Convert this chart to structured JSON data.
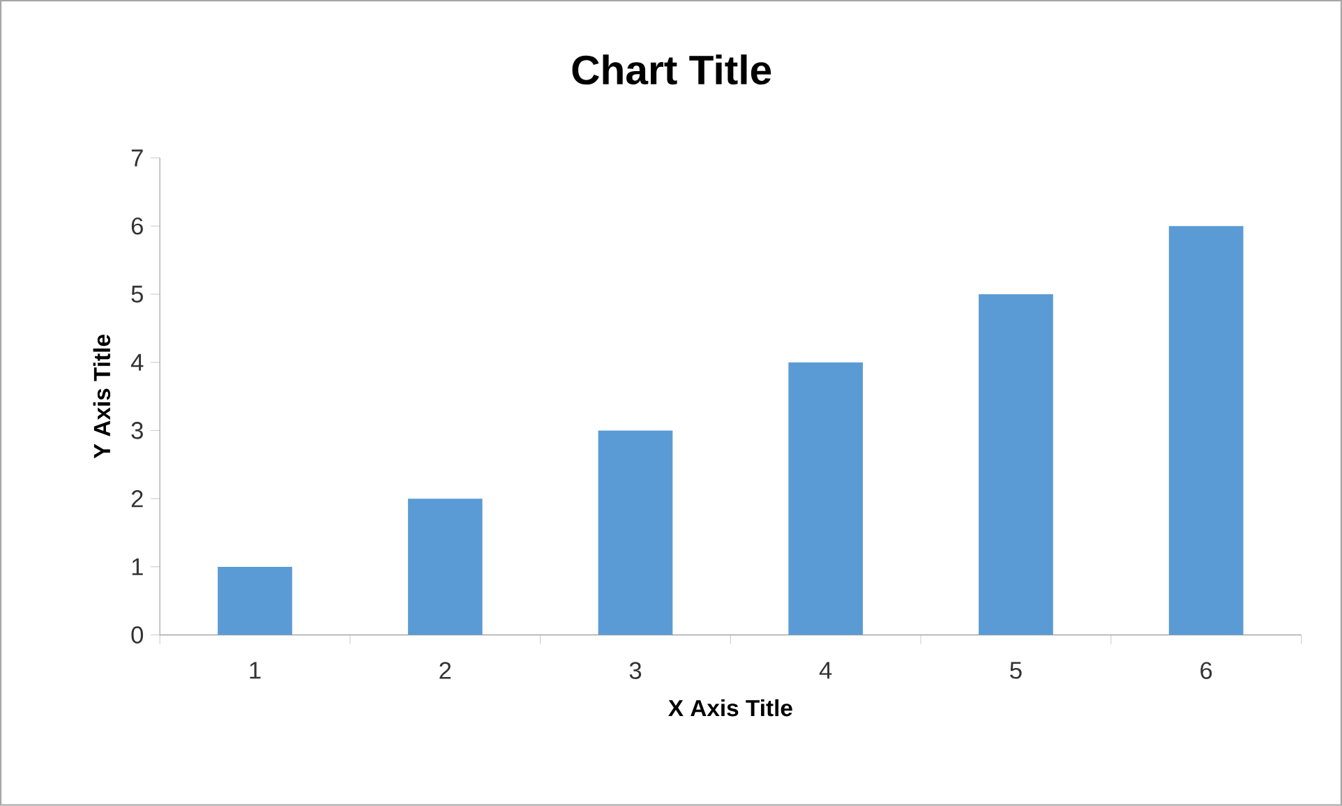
{
  "chart_data": {
    "type": "bar",
    "title": "Chart Title",
    "xlabel": "X Axis Title",
    "ylabel": "Y Axis Title",
    "categories": [
      "1",
      "2",
      "3",
      "4",
      "5",
      "6"
    ],
    "values": [
      1,
      2,
      3,
      4,
      5,
      6
    ],
    "color": "#5b9bd5",
    "ylim": [
      0,
      7
    ],
    "yticks": [
      0,
      1,
      2,
      3,
      4,
      5,
      6,
      7
    ]
  }
}
